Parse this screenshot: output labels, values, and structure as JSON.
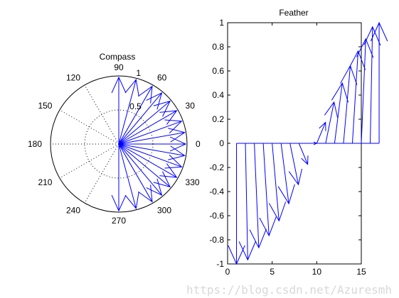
{
  "figure": {
    "watermark": "https://blog.csdn.net/Azuresmh"
  },
  "chart_data": [
    {
      "type": "polar-compass",
      "title": "Compass",
      "r_max": 1,
      "radial_ticks": [
        0.5,
        1
      ],
      "radial_tick_labels": [
        "0.5",
        "1"
      ],
      "angle_ticks_deg": [
        0,
        30,
        60,
        90,
        120,
        150,
        180,
        210,
        240,
        270,
        300,
        330
      ],
      "angle_tick_labels": [
        "0",
        "30",
        "60",
        "90",
        "120",
        "150",
        "180",
        "210",
        "240",
        "270",
        "300",
        "330"
      ],
      "arrow_color": "#0000ff",
      "arrows_deg": [
        -90,
        -75,
        -60,
        -50,
        -40,
        -30,
        -20,
        -10,
        0,
        10,
        20,
        30,
        40,
        50,
        60,
        75,
        90
      ],
      "arrows_r": [
        0.98,
        0.98,
        0.98,
        0.98,
        0.98,
        0.98,
        0.98,
        0.98,
        0.98,
        0.98,
        0.98,
        0.98,
        0.98,
        0.98,
        0.98,
        0.98,
        0.98
      ]
    },
    {
      "type": "feather",
      "title": "Feather",
      "xlim": [
        0,
        15
      ],
      "ylim": [
        -1,
        1
      ],
      "xticks": [
        0,
        5,
        10,
        15
      ],
      "yticks": [
        -1,
        -0.8,
        -0.6,
        -0.4,
        -0.2,
        0,
        0.2,
        0.4,
        0.6,
        0.8,
        1
      ],
      "ytick_labels": [
        "-1",
        "-0.8",
        "-0.6",
        "-0.4",
        "-0.2",
        "0",
        "0.2",
        "0.4",
        "0.6",
        "0.8",
        "1"
      ],
      "arrow_color": "#0000ff",
      "u": [
        0,
        0.259,
        0.5,
        0.643,
        0.766,
        0.866,
        0.94,
        0.985,
        1,
        0.985,
        0.94,
        0.866,
        0.766,
        0.643,
        0.5,
        0.259,
        0
      ],
      "v": [
        -1,
        -0.966,
        -0.866,
        -0.766,
        -0.643,
        -0.5,
        -0.342,
        -0.174,
        0,
        0.174,
        0.342,
        0.5,
        0.643,
        0.766,
        0.866,
        0.966,
        1
      ]
    }
  ]
}
